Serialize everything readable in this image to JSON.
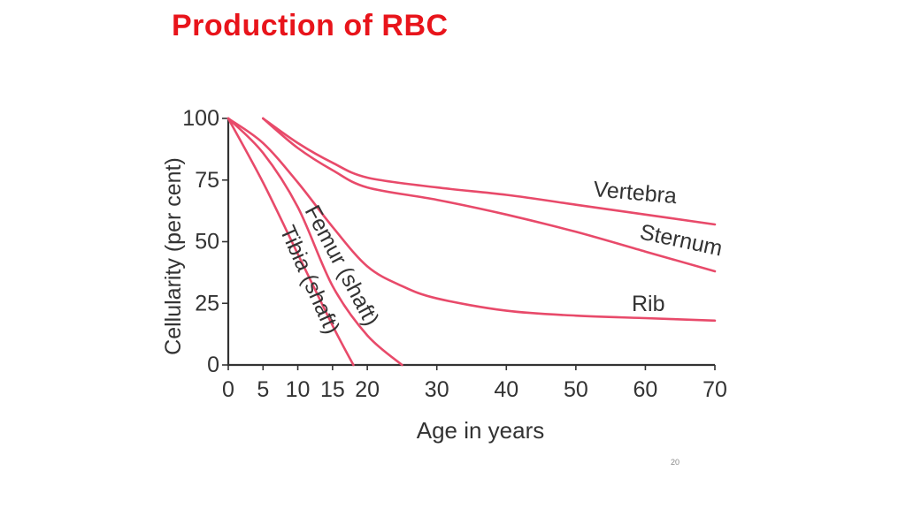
{
  "slide": {
    "title": "Production of RBC",
    "page_number": "20"
  },
  "colors": {
    "title": "#e8141b",
    "curve": "#e84a6a",
    "axis": "#333333"
  },
  "chart_data": {
    "type": "line",
    "title": "",
    "xlabel": "Age in years",
    "ylabel": "Cellularity (per cent)",
    "xlim": [
      0,
      70
    ],
    "ylim": [
      0,
      100
    ],
    "x_ticks": [
      0,
      5,
      10,
      15,
      20,
      30,
      40,
      50,
      60,
      70
    ],
    "y_ticks": [
      0,
      25,
      50,
      75,
      100
    ],
    "grid": false,
    "legend": "none (series labelled directly on curves)",
    "series": [
      {
        "name": "Vertebra",
        "x": [
          5,
          10,
          15,
          20,
          30,
          40,
          50,
          60,
          70
        ],
        "y": [
          100,
          90,
          82,
          76,
          72,
          69,
          65,
          61,
          57
        ]
      },
      {
        "name": "Sternum",
        "x": [
          5,
          10,
          15,
          20,
          30,
          40,
          50,
          60,
          70
        ],
        "y": [
          100,
          88,
          79,
          72,
          67,
          61,
          54,
          46,
          38
        ]
      },
      {
        "name": "Rib",
        "x": [
          0,
          5,
          10,
          15,
          20,
          25,
          30,
          40,
          50,
          60,
          70
        ],
        "y": [
          100,
          90,
          74,
          56,
          40,
          32,
          27,
          22,
          20,
          19,
          18
        ]
      },
      {
        "name": "Femur (shaft)",
        "x": [
          0,
          5,
          10,
          15,
          20,
          25
        ],
        "y": [
          100,
          86,
          64,
          32,
          12,
          0
        ]
      },
      {
        "name": "Tibia (shaft)",
        "x": [
          0,
          5,
          10,
          15,
          18
        ],
        "y": [
          100,
          74,
          45,
          16,
          0
        ]
      }
    ]
  }
}
